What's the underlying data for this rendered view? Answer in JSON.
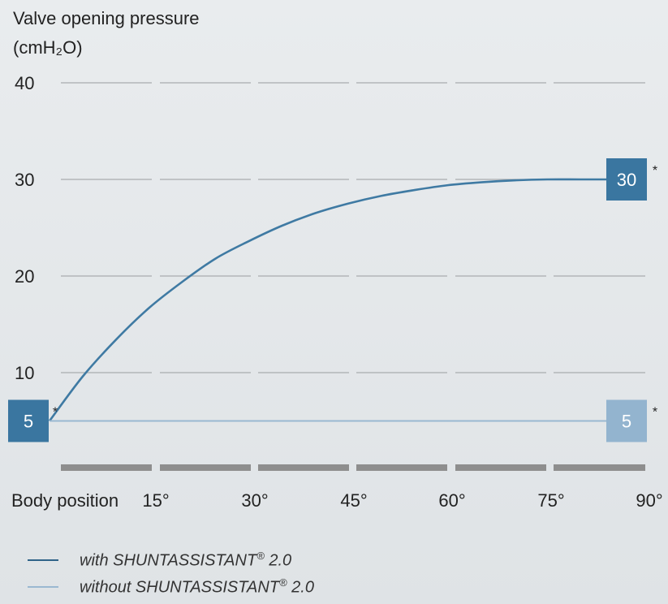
{
  "chart_data": {
    "type": "line",
    "ylabel_line1": "Valve opening pressure",
    "ylabel_line2": "(cmH₂O)",
    "xlabel": "Body position",
    "y_ticks": [
      "40",
      "30",
      "20",
      "10"
    ],
    "y_tick_values": [
      40,
      30,
      20,
      10
    ],
    "ylim": [
      0,
      40
    ],
    "x_ticks": [
      "15°",
      "30°",
      "45°",
      "60°",
      "75°",
      "90°"
    ],
    "x_tick_values": [
      15,
      30,
      45,
      60,
      75,
      90
    ],
    "xlim": [
      0,
      90
    ],
    "grid": true,
    "series": [
      {
        "name": "with SHUNTASSISTANT® 2.0",
        "color": "#3f7aa3",
        "x": [
          0,
          5,
          10,
          15,
          20,
          25,
          30,
          35,
          40,
          45,
          50,
          55,
          60,
          65,
          70,
          75,
          80,
          85,
          90
        ],
        "y": [
          5,
          9.6,
          13.4,
          16.7,
          19.4,
          21.8,
          23.6,
          25.2,
          26.5,
          27.5,
          28.3,
          28.9,
          29.4,
          29.7,
          29.9,
          30,
          30,
          30,
          30
        ]
      },
      {
        "name": "without SHUNTASSISTANT® 2.0",
        "color": "#9ab8d1",
        "x": [
          0,
          90
        ],
        "y": [
          5,
          5
        ]
      }
    ],
    "value_labels": [
      {
        "series": 0,
        "x": 0,
        "text": "5",
        "color": "#3a76a0"
      },
      {
        "series": 0,
        "x": 90,
        "text": "30",
        "color": "#3a76a0"
      },
      {
        "series": 1,
        "x": 90,
        "text": "5",
        "color": "#93b4cf"
      }
    ],
    "asterisk": "*",
    "legend": {
      "placement": "bottom-left",
      "items": [
        {
          "prefix": "with",
          "rest": " SHUNTASSISTANT",
          "reg": "®",
          "suffix": " 2.0",
          "color": "#2f6388"
        },
        {
          "prefix": "without",
          "rest": " SHUNTASSISTANT",
          "reg": "®",
          "suffix": " 2.0",
          "color": "#9ab8d1"
        }
      ]
    }
  }
}
